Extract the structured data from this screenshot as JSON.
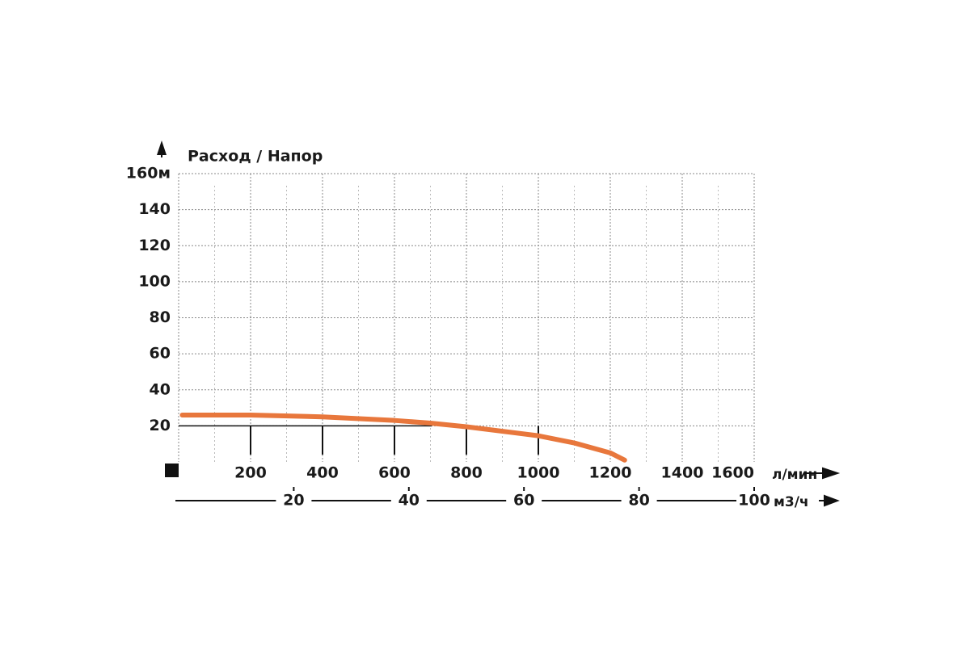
{
  "chart_data": {
    "type": "line",
    "title": "Расход / Напор",
    "x": [
      10,
      200,
      400,
      600,
      700,
      800,
      1000,
      1100,
      1200,
      1240
    ],
    "series": [
      {
        "color": "#e8773c",
        "values": [
          26,
          26,
          25,
          23,
          21.5,
          19.5,
          14.5,
          10.5,
          5,
          1
        ]
      }
    ],
    "xlim": [
      0,
      1600
    ],
    "xticks": [
      200,
      400,
      600,
      800,
      1000,
      1200,
      1400,
      1600
    ],
    "x_unit": "л/мин",
    "x2lim": [
      0,
      100
    ],
    "x2ticks": [
      20,
      40,
      60,
      80,
      100
    ],
    "x2_unit": "м3/ч",
    "ylim": [
      0,
      160
    ],
    "yticks": [
      20,
      40,
      60,
      80,
      100,
      120,
      140,
      {
        "value": 160,
        "label": "160м"
      }
    ],
    "grid": true
  }
}
